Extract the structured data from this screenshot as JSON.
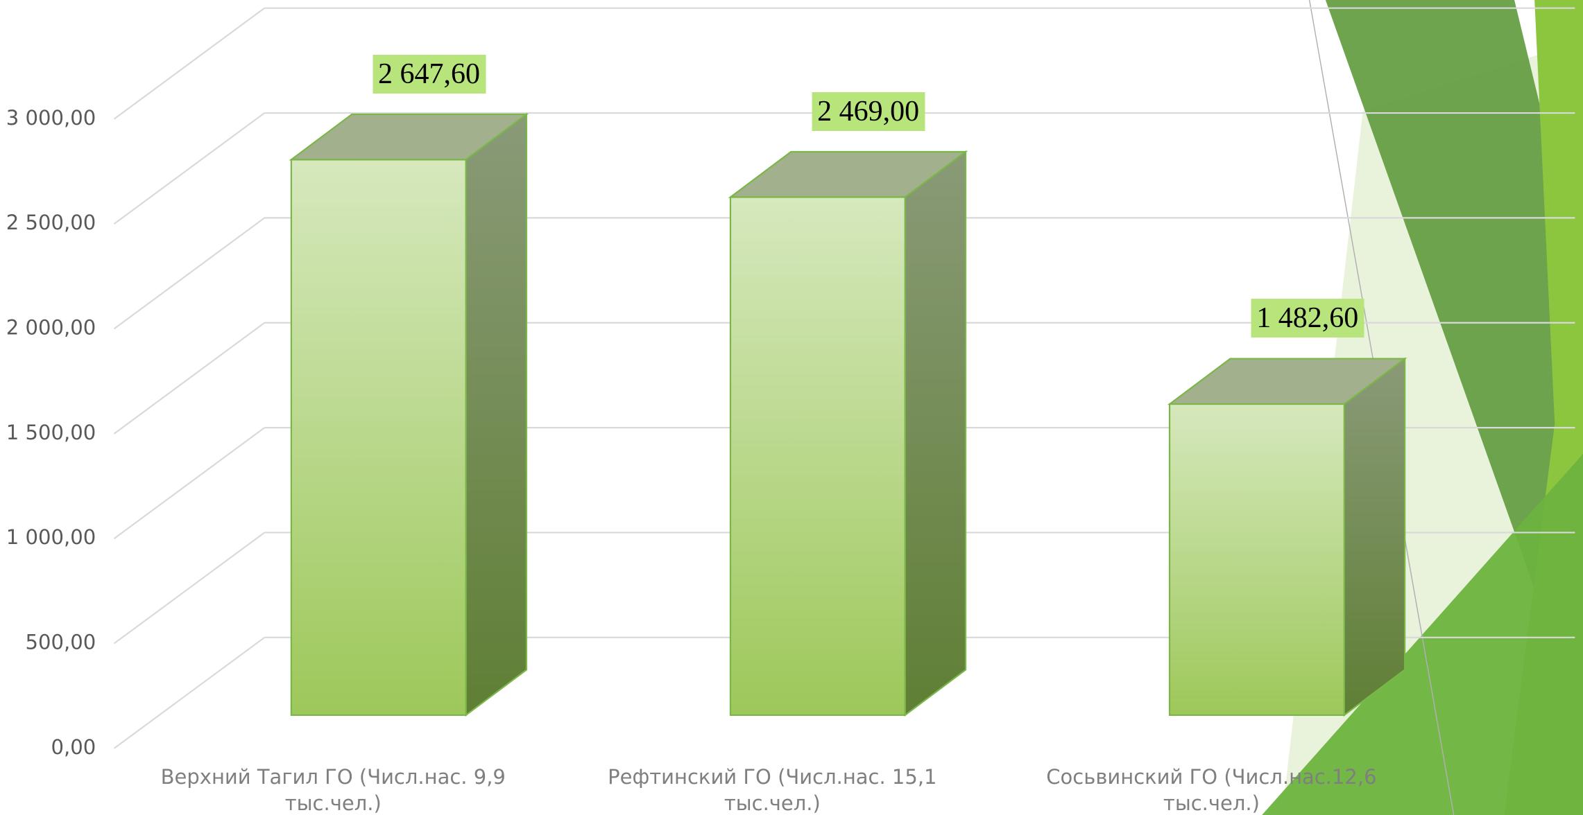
{
  "chart_data": {
    "type": "bar3d",
    "categories": [
      "Верхний Тагил ГО (Числ.нас. 9,9 тыс.чел.)",
      "Рефтинский ГО (Числ.нас. 15,1 тыс.чел.)",
      "Сосьвинский ГО (Числ.нас.12,6 тыс.чел.)"
    ],
    "values": [
      2647.6,
      2469.0,
      1482.6
    ],
    "value_labels": [
      "2 647,60",
      "2 469,00",
      "1 482,60"
    ],
    "color": "#9dc85a",
    "ylim": [
      0,
      3500
    ],
    "yticks": [
      {
        "value": 0,
        "label": "0,00"
      },
      {
        "value": 500,
        "label": "500,00"
      },
      {
        "value": 1000,
        "label": "1 000,00"
      },
      {
        "value": 1500,
        "label": "1 500,00"
      },
      {
        "value": 2000,
        "label": "2 000,00"
      },
      {
        "value": 2500,
        "label": "2 500,00"
      },
      {
        "value": 3000,
        "label": "3 000,00"
      }
    ],
    "grid": true
  }
}
